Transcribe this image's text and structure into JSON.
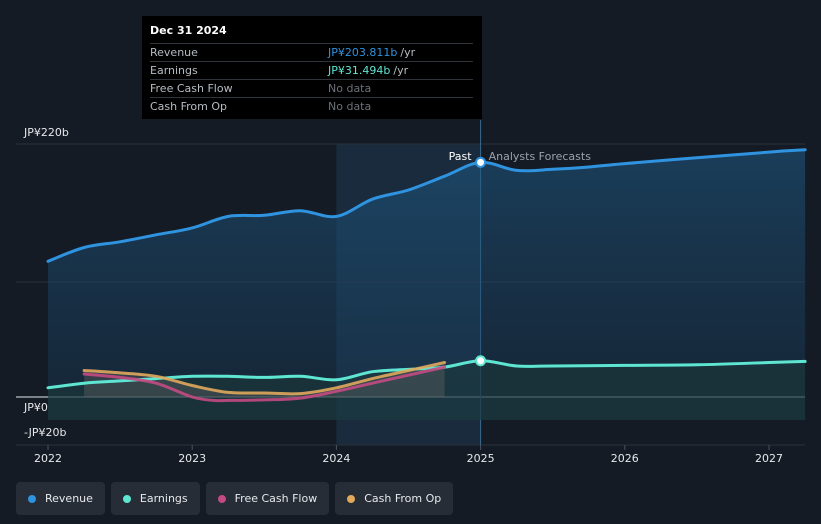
{
  "tooltip": {
    "date": "Dec 31 2024",
    "rows": [
      {
        "label": "Revenue",
        "value": "JP¥203.811b",
        "unit": "/yr",
        "color": "#2f93e0"
      },
      {
        "label": "Earnings",
        "value": "JP¥31.494b",
        "unit": "/yr",
        "color": "#5ee6d2"
      },
      {
        "label": "Free Cash Flow",
        "value": "No data",
        "unit": "",
        "color": "#6c7178"
      },
      {
        "label": "Cash From Op",
        "value": "No data",
        "unit": "",
        "color": "#6c7178"
      }
    ]
  },
  "legend": [
    {
      "label": "Revenue",
      "color": "#2f93e0"
    },
    {
      "label": "Earnings",
      "color": "#5ee6d2"
    },
    {
      "label": "Free Cash Flow",
      "color": "#c34a82"
    },
    {
      "label": "Cash From Op",
      "color": "#e0a95c"
    }
  ],
  "chart_data": {
    "type": "line",
    "title": "",
    "xlabel": "",
    "ylabel": "",
    "ylim": [
      -20,
      220
    ],
    "y_tick_labels": [
      "JP¥220b",
      "JP¥0",
      "-JP¥20b"
    ],
    "x_tick_labels": [
      "2022",
      "2023",
      "2024",
      "2025",
      "2026",
      "2027"
    ],
    "divider_x": 2025.0,
    "past_label": "Past",
    "forecast_label": "Analysts Forecasts",
    "series": [
      {
        "name": "Revenue",
        "color": "#2f93e0",
        "x": [
          2022.0,
          2022.25,
          2022.5,
          2022.75,
          2023.0,
          2023.25,
          2023.5,
          2023.75,
          2024.0,
          2024.25,
          2024.5,
          2024.75,
          2025.0,
          2025.25,
          2025.5,
          2025.75,
          2026.0,
          2026.5,
          2027.0,
          2027.25
        ],
        "y": [
          118,
          130,
          135,
          141,
          147,
          157,
          158,
          162,
          157,
          172,
          180,
          192,
          204,
          197,
          198,
          200,
          203,
          208,
          213,
          215
        ]
      },
      {
        "name": "Earnings",
        "color": "#5ee6d2",
        "x": [
          2022.0,
          2022.25,
          2022.5,
          2022.75,
          2023.0,
          2023.25,
          2023.5,
          2023.75,
          2024.0,
          2024.25,
          2024.5,
          2024.75,
          2025.0,
          2025.25,
          2025.5,
          2026.0,
          2026.5,
          2027.0,
          2027.25
        ],
        "y": [
          8,
          12,
          14,
          16,
          18,
          18,
          17,
          18,
          15,
          22,
          24,
          26,
          31.5,
          27,
          27,
          27.5,
          28,
          30,
          31
        ]
      },
      {
        "name": "Free Cash Flow",
        "color": "#c34a82",
        "x": [
          2022.25,
          2022.5,
          2022.75,
          2023.0,
          2023.15,
          2023.25,
          2023.5,
          2023.75,
          2024.0,
          2024.25,
          2024.5,
          2024.75
        ],
        "y": [
          20,
          17,
          12,
          0,
          -3,
          -3,
          -2.5,
          -1,
          5,
          12,
          19,
          26
        ]
      },
      {
        "name": "Cash From Op",
        "color": "#e0a95c",
        "x": [
          2022.25,
          2022.5,
          2022.75,
          2023.0,
          2023.25,
          2023.5,
          2023.75,
          2024.0,
          2024.25,
          2024.5,
          2024.75
        ],
        "y": [
          23,
          21,
          18,
          10,
          4,
          3.5,
          3,
          8,
          16,
          23,
          30
        ]
      }
    ],
    "markers": [
      {
        "series": "Revenue",
        "x": 2025.0,
        "y": 204
      },
      {
        "series": "Earnings",
        "x": 2025.0,
        "y": 31.5
      }
    ]
  }
}
